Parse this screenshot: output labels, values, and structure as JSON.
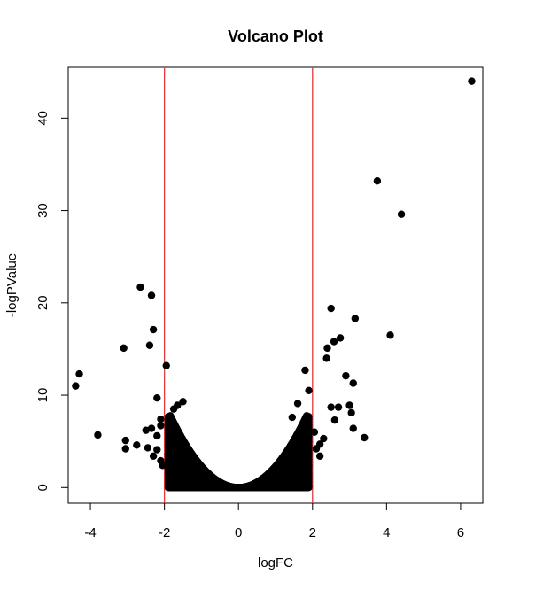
{
  "chart_data": {
    "type": "scatter",
    "title": "Volcano Plot",
    "xlabel": "logFC",
    "ylabel": "-logPValue",
    "xlim": [
      -4.6,
      6.6
    ],
    "ylim": [
      -1.7,
      45.5
    ],
    "xticks": [
      -4,
      -2,
      0,
      2,
      4,
      6
    ],
    "yticks": [
      0,
      10,
      20,
      30,
      40
    ],
    "grid": false,
    "legend": "none",
    "marker_color": "#000000",
    "threshold_lines": {
      "x": [
        -2,
        2
      ],
      "color": "#e8393b"
    },
    "points": [
      [
        6.3,
        44.0
      ],
      [
        3.75,
        33.2
      ],
      [
        4.4,
        29.6
      ],
      [
        -2.65,
        21.7
      ],
      [
        -2.35,
        20.8
      ],
      [
        2.5,
        19.4
      ],
      [
        3.15,
        18.3
      ],
      [
        -2.3,
        17.1
      ],
      [
        4.1,
        16.5
      ],
      [
        2.75,
        16.2
      ],
      [
        2.58,
        15.8
      ],
      [
        -2.4,
        15.4
      ],
      [
        -3.1,
        15.1
      ],
      [
        2.4,
        15.1
      ],
      [
        2.38,
        14.0
      ],
      [
        -1.95,
        13.2
      ],
      [
        1.8,
        12.7
      ],
      [
        -4.3,
        12.3
      ],
      [
        2.9,
        12.1
      ],
      [
        3.1,
        11.3
      ],
      [
        -4.4,
        11.0
      ],
      [
        1.9,
        10.5
      ],
      [
        -2.2,
        9.7
      ],
      [
        3.0,
        8.9
      ],
      [
        2.7,
        8.7
      ],
      [
        2.5,
        8.7
      ],
      [
        3.05,
        8.1
      ],
      [
        -1.5,
        9.3
      ],
      [
        -1.65,
        8.9
      ],
      [
        -1.75,
        8.5
      ],
      [
        1.6,
        9.1
      ],
      [
        -2.1,
        7.4
      ],
      [
        -2.35,
        6.4
      ],
      [
        -2.1,
        6.7
      ],
      [
        2.6,
        7.3
      ],
      [
        1.45,
        7.6
      ],
      [
        3.1,
        6.4
      ],
      [
        3.4,
        5.4
      ],
      [
        -3.8,
        5.7
      ],
      [
        -3.05,
        5.1
      ],
      [
        -3.05,
        4.2
      ],
      [
        -2.45,
        4.3
      ],
      [
        -2.75,
        4.6
      ],
      [
        -2.2,
        4.1
      ],
      [
        -2.3,
        3.4
      ],
      [
        -2.1,
        2.9
      ],
      [
        -2.05,
        2.4
      ],
      [
        2.2,
        4.7
      ],
      [
        2.1,
        4.2
      ],
      [
        2.2,
        3.4
      ],
      [
        2.3,
        5.3
      ],
      [
        -2.5,
        6.2
      ],
      [
        -2.2,
        5.6
      ],
      [
        2.05,
        6.0
      ],
      [
        -1.9,
        3.6
      ]
    ]
  }
}
